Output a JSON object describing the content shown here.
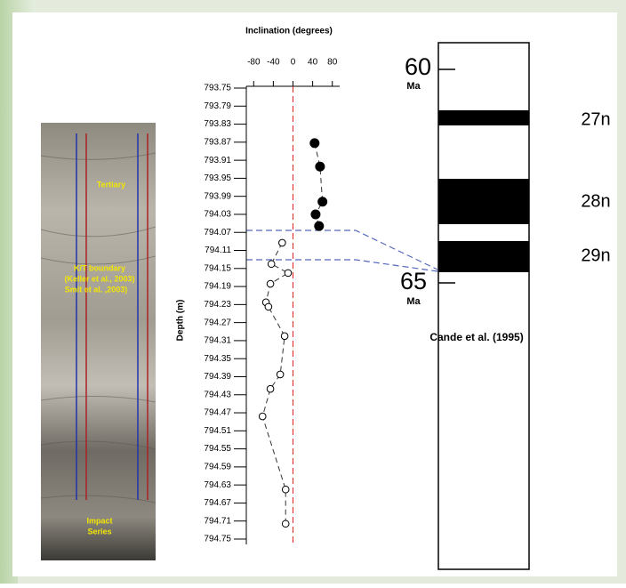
{
  "chart_data": {
    "type": "scatter",
    "title": "Inclination (degrees)",
    "y_label": "Depth (m)",
    "xlim": [
      -95,
      95
    ],
    "xticks": [
      -80,
      -40,
      0,
      40,
      80
    ],
    "ylim": [
      793.75,
      794.75
    ],
    "y_inverted": true,
    "yticks": [
      793.75,
      793.79,
      793.83,
      793.87,
      793.91,
      793.95,
      793.99,
      794.03,
      794.07,
      794.11,
      794.15,
      794.19,
      794.23,
      794.27,
      794.31,
      794.35,
      794.39,
      794.43,
      794.47,
      794.51,
      794.55,
      794.59,
      794.63,
      794.67,
      794.71,
      794.75
    ],
    "zero_line": true,
    "series": [
      {
        "marker": "filled",
        "color": "#000000",
        "x": [
          44,
          55,
          60,
          46,
          53
        ],
        "values": [
          793.872,
          793.924,
          794.002,
          794.03,
          794.056
        ]
      },
      {
        "marker": "open",
        "color": "#000000",
        "x": [
          -22,
          -44,
          -10,
          -46,
          -55,
          -50,
          -17,
          -26,
          -46,
          -62,
          -15,
          -15
        ],
        "values": [
          794.093,
          794.14,
          794.16,
          794.184,
          794.225,
          794.235,
          794.3,
          794.385,
          794.417,
          794.478,
          794.64,
          794.716
        ]
      }
    ],
    "core_labels": [
      "Tertiary",
      "K/T boundary",
      "(Keller et al., 2003)",
      "Smit et al. ,2003)",
      "Impact",
      "Series"
    ],
    "polarity_column": {
      "top_age": "60",
      "bottom_age": "65",
      "unit": "Ma",
      "chrons": [
        "27n",
        "28n",
        "29n"
      ],
      "source": "Cande et al. (1995)"
    }
  }
}
